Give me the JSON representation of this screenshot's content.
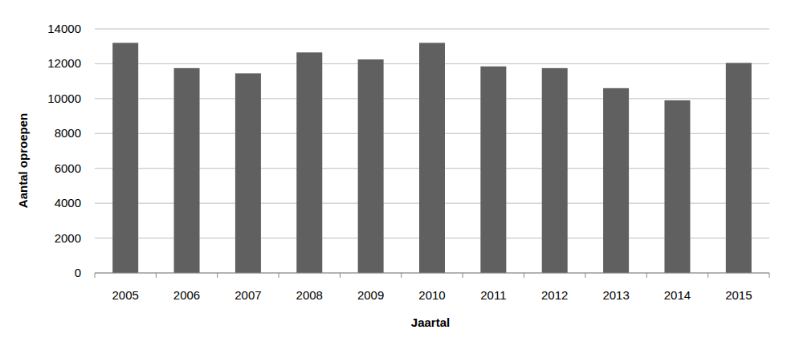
{
  "chart_data": {
    "type": "bar",
    "x_label": "Jaartal",
    "y_label": "Aantal oproepen",
    "categories": [
      "2005",
      "2006",
      "2007",
      "2008",
      "2009",
      "2010",
      "2011",
      "2012",
      "2013",
      "2014",
      "2015"
    ],
    "values": [
      13200,
      11750,
      11450,
      12650,
      12250,
      13200,
      11850,
      11750,
      10600,
      9900,
      12050
    ],
    "color": "#606060",
    "ylim": [
      0,
      14000
    ],
    "yticks": [
      0,
      2000,
      4000,
      6000,
      8000,
      10000,
      12000,
      14000
    ],
    "grid": true
  }
}
